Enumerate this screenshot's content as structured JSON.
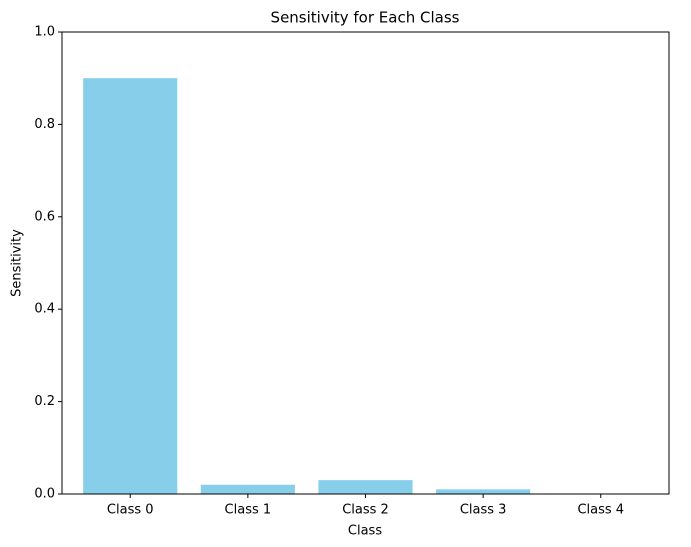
{
  "chart_data": {
    "type": "bar",
    "title": "Sensitivity for Each Class",
    "x_label": "Class",
    "y_label": "Sensitivity",
    "categories": [
      "Class 0",
      "Class 1",
      "Class 2",
      "Class 3",
      "Class 4"
    ],
    "values": [
      0.9,
      0.02,
      0.03,
      0.01,
      0
    ],
    "color": "#87ceeb",
    "ylim": [
      0,
      1
    ],
    "yticks": [
      {
        "value": 0,
        "label": "0.0"
      },
      0.2,
      0.4,
      0.6,
      0.8,
      {
        "value": 1,
        "label": "1.0"
      }
    ],
    "grid": false
  }
}
